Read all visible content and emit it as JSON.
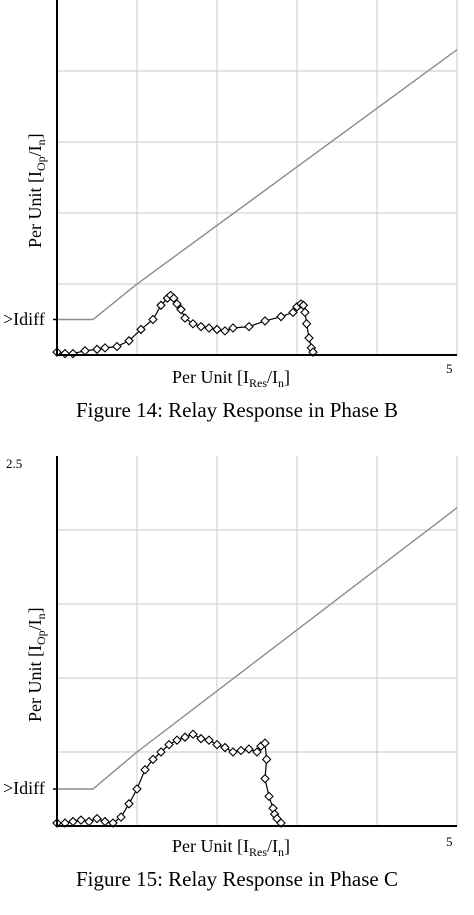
{
  "figures": [
    {
      "caption": "Figure 14: Relay Response in Phase B",
      "y_tick_top": "",
      "x_tick_right": "5",
      "idiff_label": ">Idiff",
      "ylabel_main": "Per Unit [I",
      "ylabel_sub1": "Op",
      "ylabel_mid": "/I",
      "ylabel_sub2": "n",
      "ylabel_end": "]",
      "xlabel_main": "Per Unit [I",
      "xlabel_sub1": "Res",
      "xlabel_mid": "/I",
      "xlabel_sub2": "n",
      "xlabel_end": "]"
    },
    {
      "caption": "Figure 15: Relay Response in Phase C",
      "y_tick_top": "2.5",
      "x_tick_right": "5",
      "idiff_label": ">Idiff",
      "ylabel_main": "Per Unit [I",
      "ylabel_sub1": "Op",
      "ylabel_mid": "/I",
      "ylabel_sub2": "n",
      "ylabel_end": "]",
      "xlabel_main": "Per Unit [I",
      "xlabel_sub1": "Res",
      "xlabel_mid": "/I",
      "xlabel_sub2": "n",
      "xlabel_end": "]"
    }
  ],
  "colors": {
    "grid": "#c8c8c8",
    "characteristic": "#8c8c8c",
    "response": "#000000",
    "axis": "#000000"
  },
  "chart_data": [
    {
      "type": "line",
      "title": "Figure 14: Relay Response in Phase B",
      "xlabel": "Per Unit [IRes/In]",
      "ylabel": "Per Unit [IOp/In]",
      "xlim": [
        0,
        5
      ],
      "ylim": [
        0,
        2.5
      ],
      "grid": true,
      "series": [
        {
          "role": "characteristic",
          "x": [
            0,
            0.45,
            1.0,
            5.0
          ],
          "y": [
            0.25,
            0.25,
            0.5,
            2.15
          ]
        },
        {
          "role": "response",
          "x": [
            0.0,
            0.1,
            0.2,
            0.35,
            0.5,
            0.6,
            0.75,
            0.9,
            1.05,
            1.2,
            1.3,
            1.38,
            1.42,
            1.46,
            1.5,
            1.55,
            1.6,
            1.7,
            1.8,
            1.9,
            2.0,
            2.1,
            2.2,
            2.4,
            2.6,
            2.8,
            2.95,
            3.0,
            3.05,
            3.08,
            3.1,
            3.12,
            3.15,
            3.18,
            3.2
          ],
          "y": [
            0.02,
            0.01,
            0.01,
            0.03,
            0.04,
            0.05,
            0.06,
            0.1,
            0.18,
            0.25,
            0.35,
            0.4,
            0.42,
            0.4,
            0.36,
            0.32,
            0.26,
            0.22,
            0.2,
            0.19,
            0.18,
            0.17,
            0.19,
            0.2,
            0.24,
            0.27,
            0.3,
            0.34,
            0.36,
            0.35,
            0.3,
            0.22,
            0.12,
            0.05,
            0.02
          ]
        }
      ]
    },
    {
      "type": "line",
      "title": "Figure 15: Relay Response in Phase C",
      "xlabel": "Per Unit [IRes/In]",
      "ylabel": "Per Unit [IOp/In]",
      "xlim": [
        0,
        5
      ],
      "ylim": [
        0,
        2.5
      ],
      "grid": true,
      "series": [
        {
          "role": "characteristic",
          "x": [
            0,
            0.45,
            1.0,
            5.0
          ],
          "y": [
            0.25,
            0.25,
            0.5,
            2.15
          ]
        },
        {
          "role": "response",
          "x": [
            0.0,
            0.1,
            0.2,
            0.3,
            0.4,
            0.5,
            0.6,
            0.7,
            0.8,
            0.9,
            1.0,
            1.1,
            1.2,
            1.3,
            1.4,
            1.5,
            1.6,
            1.7,
            1.8,
            1.9,
            2.0,
            2.1,
            2.2,
            2.3,
            2.4,
            2.5,
            2.55,
            2.6,
            2.62,
            2.6,
            2.65,
            2.7,
            2.72,
            2.75,
            2.8
          ],
          "y": [
            0.02,
            0.02,
            0.03,
            0.04,
            0.03,
            0.05,
            0.03,
            0.02,
            0.06,
            0.15,
            0.25,
            0.38,
            0.45,
            0.5,
            0.55,
            0.58,
            0.6,
            0.62,
            0.59,
            0.58,
            0.55,
            0.53,
            0.5,
            0.51,
            0.52,
            0.5,
            0.54,
            0.56,
            0.45,
            0.32,
            0.2,
            0.12,
            0.08,
            0.05,
            0.02
          ]
        }
      ]
    }
  ]
}
